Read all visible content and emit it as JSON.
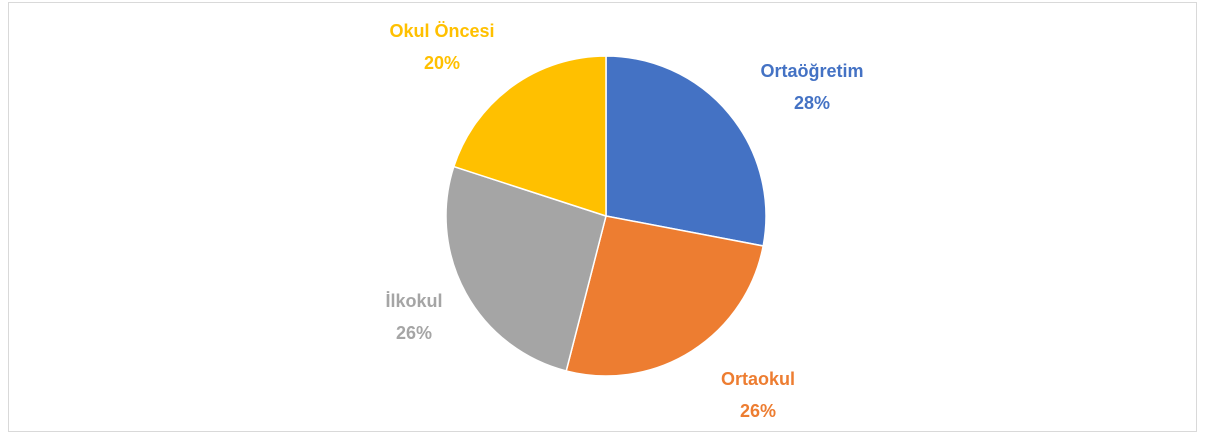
{
  "chart_data": {
    "type": "pie",
    "categories": [
      "Ortaöğretim",
      "Ortaokul",
      "İlkokul",
      "Okul Öncesi"
    ],
    "values": [
      28,
      26,
      26,
      20
    ],
    "value_labels": [
      "28%",
      "26%",
      "26%",
      "20%"
    ],
    "colors": [
      "#4472c4",
      "#ed7d31",
      "#a5a5a5",
      "#ffc000"
    ]
  }
}
